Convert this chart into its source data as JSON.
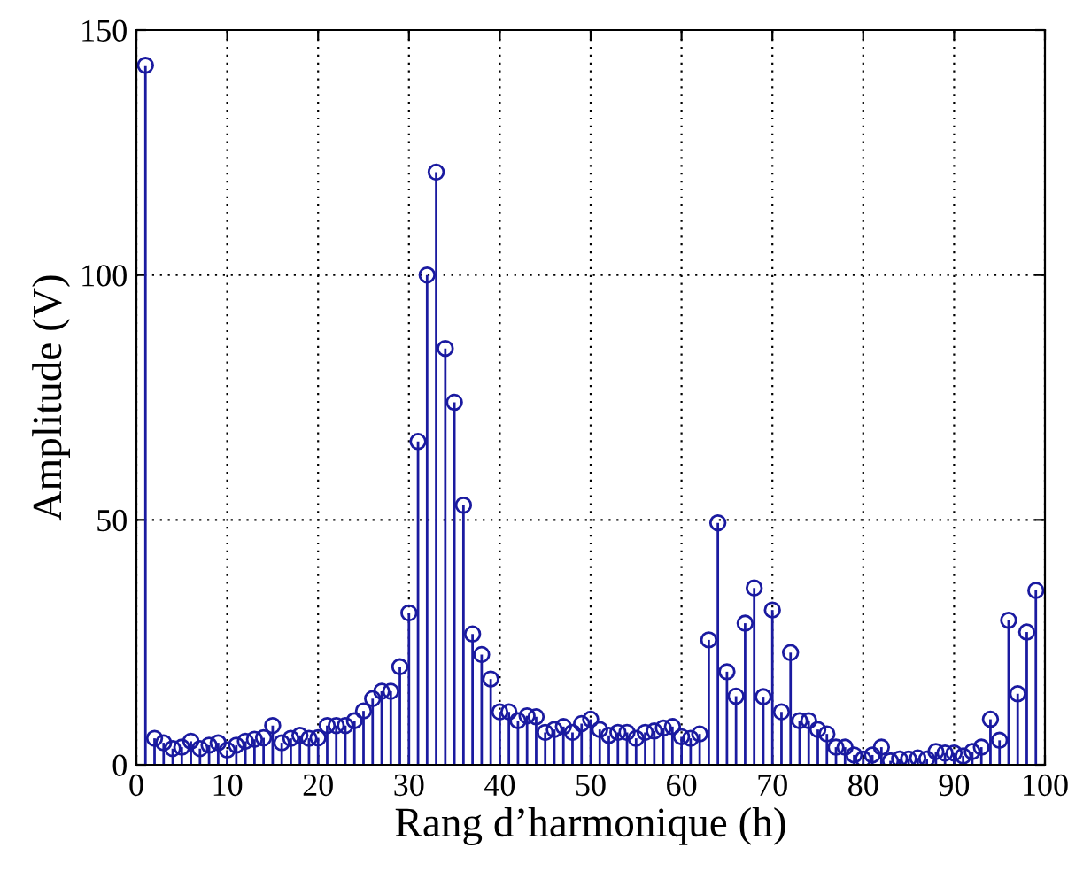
{
  "chart_data": {
    "type": "lollipop",
    "xlabel": "Rang d’harmonique (h)",
    "ylabel": "Amplitude (V)",
    "x": [
      1,
      2,
      3,
      4,
      5,
      6,
      7,
      8,
      9,
      10,
      11,
      12,
      13,
      14,
      15,
      16,
      17,
      18,
      19,
      20,
      21,
      22,
      23,
      24,
      25,
      26,
      27,
      28,
      29,
      30,
      31,
      32,
      33,
      34,
      35,
      36,
      37,
      38,
      39,
      40,
      41,
      42,
      43,
      44,
      45,
      46,
      47,
      48,
      49,
      50,
      51,
      52,
      53,
      54,
      55,
      56,
      57,
      58,
      59,
      60,
      61,
      62,
      63,
      64,
      65,
      66,
      67,
      68,
      69,
      70,
      71,
      72,
      73,
      74,
      75,
      76,
      77,
      78,
      79,
      80,
      81,
      82,
      83,
      84,
      85,
      86,
      87,
      88,
      89,
      90,
      91,
      92,
      93,
      94,
      95,
      96,
      97,
      98,
      99
    ],
    "values": [
      142.8,
      5.4,
      4.5,
      3.3,
      3.6,
      4.8,
      3.3,
      4,
      4.5,
      3,
      4,
      4.8,
      5.2,
      5.5,
      8,
      4.5,
      5.4,
      6,
      5.4,
      5.5,
      8,
      8,
      8,
      9,
      11,
      13.5,
      15,
      15,
      20,
      31,
      66,
      100,
      121,
      85,
      74,
      53,
      26.7,
      22.5,
      17.5,
      10.8,
      10.8,
      9,
      10,
      9.8,
      6.6,
      7.2,
      7.8,
      6.6,
      8.4,
      9.3,
      7.2,
      6,
      6.6,
      6.6,
      5.4,
      6.6,
      6.9,
      7.5,
      7.8,
      5.7,
      5.4,
      6.3,
      25.5,
      49.4,
      19,
      14,
      28.9,
      36.1,
      13.9,
      31.6,
      10.8,
      22.9,
      9,
      9,
      7.2,
      6.3,
      3.6,
      3.6,
      2,
      1.2,
      2,
      3.6,
      0.8,
      1.2,
      1.2,
      1.4,
      1.2,
      2.7,
      2.4,
      2.4,
      1.8,
      2.7,
      3.6,
      9.3,
      5,
      29.5,
      14.5,
      27.1,
      35.6
    ],
    "color": "#1a1aa0",
    "marker": "circle",
    "xlim": [
      0,
      100
    ],
    "xticks": [
      0,
      10,
      20,
      30,
      40,
      50,
      60,
      70,
      80,
      90,
      100
    ],
    "ylim": [
      0,
      150
    ],
    "yticks": [
      0,
      50,
      100,
      150
    ],
    "grid": true
  }
}
